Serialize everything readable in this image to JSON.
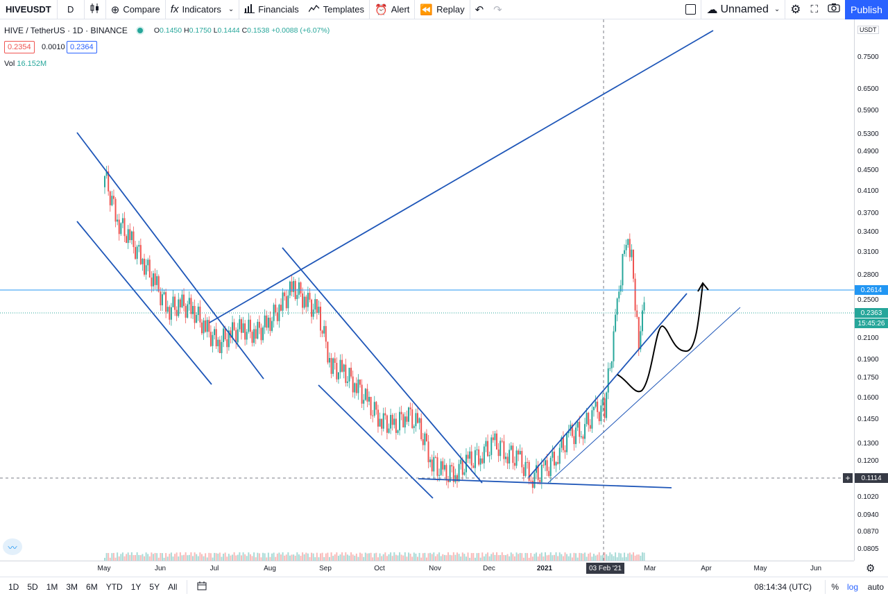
{
  "toolbar": {
    "symbol": "HIVEUSDT",
    "interval": "D",
    "compare": "Compare",
    "indicators": "Indicators",
    "financials": "Financials",
    "templates": "Templates",
    "alert": "Alert",
    "replay": "Replay",
    "layout_name": "Unnamed",
    "publish": "Publish"
  },
  "legend": {
    "title": "HIVE / TetherUS · 1D · BINANCE",
    "open_label": "O",
    "open": "0.1450",
    "high_label": "H",
    "high": "0.1750",
    "low_label": "L",
    "low": "0.1444",
    "close_label": "C",
    "close": "0.1538",
    "change": "+0.0088 (+6.07%)",
    "bid": "0.2354",
    "spread": "0.0010",
    "ask": "0.2364",
    "vol_label": "Vol",
    "vol": "16.152M"
  },
  "price_axis": {
    "currency": "USDT",
    "ticks": [
      "0.7500",
      "0.6500",
      "0.5900",
      "0.5300",
      "0.4900",
      "0.4500",
      "0.4100",
      "0.3700",
      "0.3400",
      "0.3100",
      "0.2800",
      "0.2500",
      "0.2100",
      "0.1900",
      "0.1750",
      "0.1600",
      "0.1450",
      "0.1300",
      "0.1200",
      "0.1020",
      "0.0940",
      "0.0870",
      "0.0805"
    ],
    "line_price": "0.2614",
    "last_price": "0.2363",
    "countdown": "15:45:26",
    "crosshair_price": "0.1114"
  },
  "time_axis": {
    "ticks": [
      "May",
      "Jun",
      "Jul",
      "Aug",
      "Sep",
      "Oct",
      "Nov",
      "Dec",
      "2021",
      "Mar",
      "Apr",
      "May",
      "Jun"
    ],
    "crosshair_date": "03 Feb '21"
  },
  "bottom_bar": {
    "ranges": [
      "1D",
      "5D",
      "1M",
      "3M",
      "6M",
      "YTD",
      "1Y",
      "5Y",
      "All"
    ],
    "clock": "08:14:34 (UTC)",
    "percent": "%",
    "log": "log",
    "auto": "auto"
  },
  "colors": {
    "up": "#26a69a",
    "down": "#ef5350",
    "drawing": "#1e56b8",
    "accent": "#2962ff",
    "hline": "#2196f3"
  },
  "chart_data": {
    "type": "candlestick",
    "title": "HIVE / TetherUS · 1D · BINANCE",
    "scale": "log",
    "ylim": [
      0.078,
      0.82
    ],
    "x_range": [
      "2020-04-27",
      "2021-06-30"
    ],
    "closes": [
      {
        "x": "2020-05-01",
        "y": 0.44
      },
      {
        "x": "2020-05-08",
        "y": 0.36
      },
      {
        "x": "2020-05-15",
        "y": 0.33
      },
      {
        "x": "2020-05-22",
        "y": 0.3
      },
      {
        "x": "2020-05-29",
        "y": 0.27
      },
      {
        "x": "2020-06-05",
        "y": 0.24
      },
      {
        "x": "2020-06-12",
        "y": 0.245
      },
      {
        "x": "2020-06-19",
        "y": 0.24
      },
      {
        "x": "2020-06-26",
        "y": 0.22
      },
      {
        "x": "2020-07-03",
        "y": 0.205
      },
      {
        "x": "2020-07-10",
        "y": 0.215
      },
      {
        "x": "2020-07-17",
        "y": 0.22
      },
      {
        "x": "2020-07-24",
        "y": 0.215
      },
      {
        "x": "2020-07-31",
        "y": 0.225
      },
      {
        "x": "2020-08-07",
        "y": 0.245
      },
      {
        "x": "2020-08-14",
        "y": 0.265
      },
      {
        "x": "2020-08-21",
        "y": 0.25
      },
      {
        "x": "2020-08-28",
        "y": 0.235
      },
      {
        "x": "2020-09-04",
        "y": 0.185
      },
      {
        "x": "2020-09-11",
        "y": 0.18
      },
      {
        "x": "2020-09-18",
        "y": 0.17
      },
      {
        "x": "2020-09-25",
        "y": 0.155
      },
      {
        "x": "2020-10-02",
        "y": 0.145
      },
      {
        "x": "2020-10-09",
        "y": 0.14
      },
      {
        "x": "2020-10-16",
        "y": 0.15
      },
      {
        "x": "2020-10-23",
        "y": 0.14
      },
      {
        "x": "2020-10-30",
        "y": 0.12
      },
      {
        "x": "2020-11-06",
        "y": 0.113
      },
      {
        "x": "2020-11-13",
        "y": 0.115
      },
      {
        "x": "2020-11-20",
        "y": 0.12
      },
      {
        "x": "2020-11-27",
        "y": 0.125
      },
      {
        "x": "2020-12-04",
        "y": 0.13
      },
      {
        "x": "2020-12-11",
        "y": 0.125
      },
      {
        "x": "2020-12-18",
        "y": 0.12
      },
      {
        "x": "2020-12-25",
        "y": 0.112
      },
      {
        "x": "2021-01-01",
        "y": 0.115
      },
      {
        "x": "2021-01-08",
        "y": 0.125
      },
      {
        "x": "2021-01-15",
        "y": 0.135
      },
      {
        "x": "2021-01-22",
        "y": 0.14
      },
      {
        "x": "2021-01-29",
        "y": 0.15
      },
      {
        "x": "2021-02-03",
        "y": 0.1538
      },
      {
        "x": "2021-02-10",
        "y": 0.24
      },
      {
        "x": "2021-02-14",
        "y": 0.33
      },
      {
        "x": "2021-02-18",
        "y": 0.3
      },
      {
        "x": "2021-02-22",
        "y": 0.21
      },
      {
        "x": "2021-02-25",
        "y": 0.2363
      }
    ]
  }
}
